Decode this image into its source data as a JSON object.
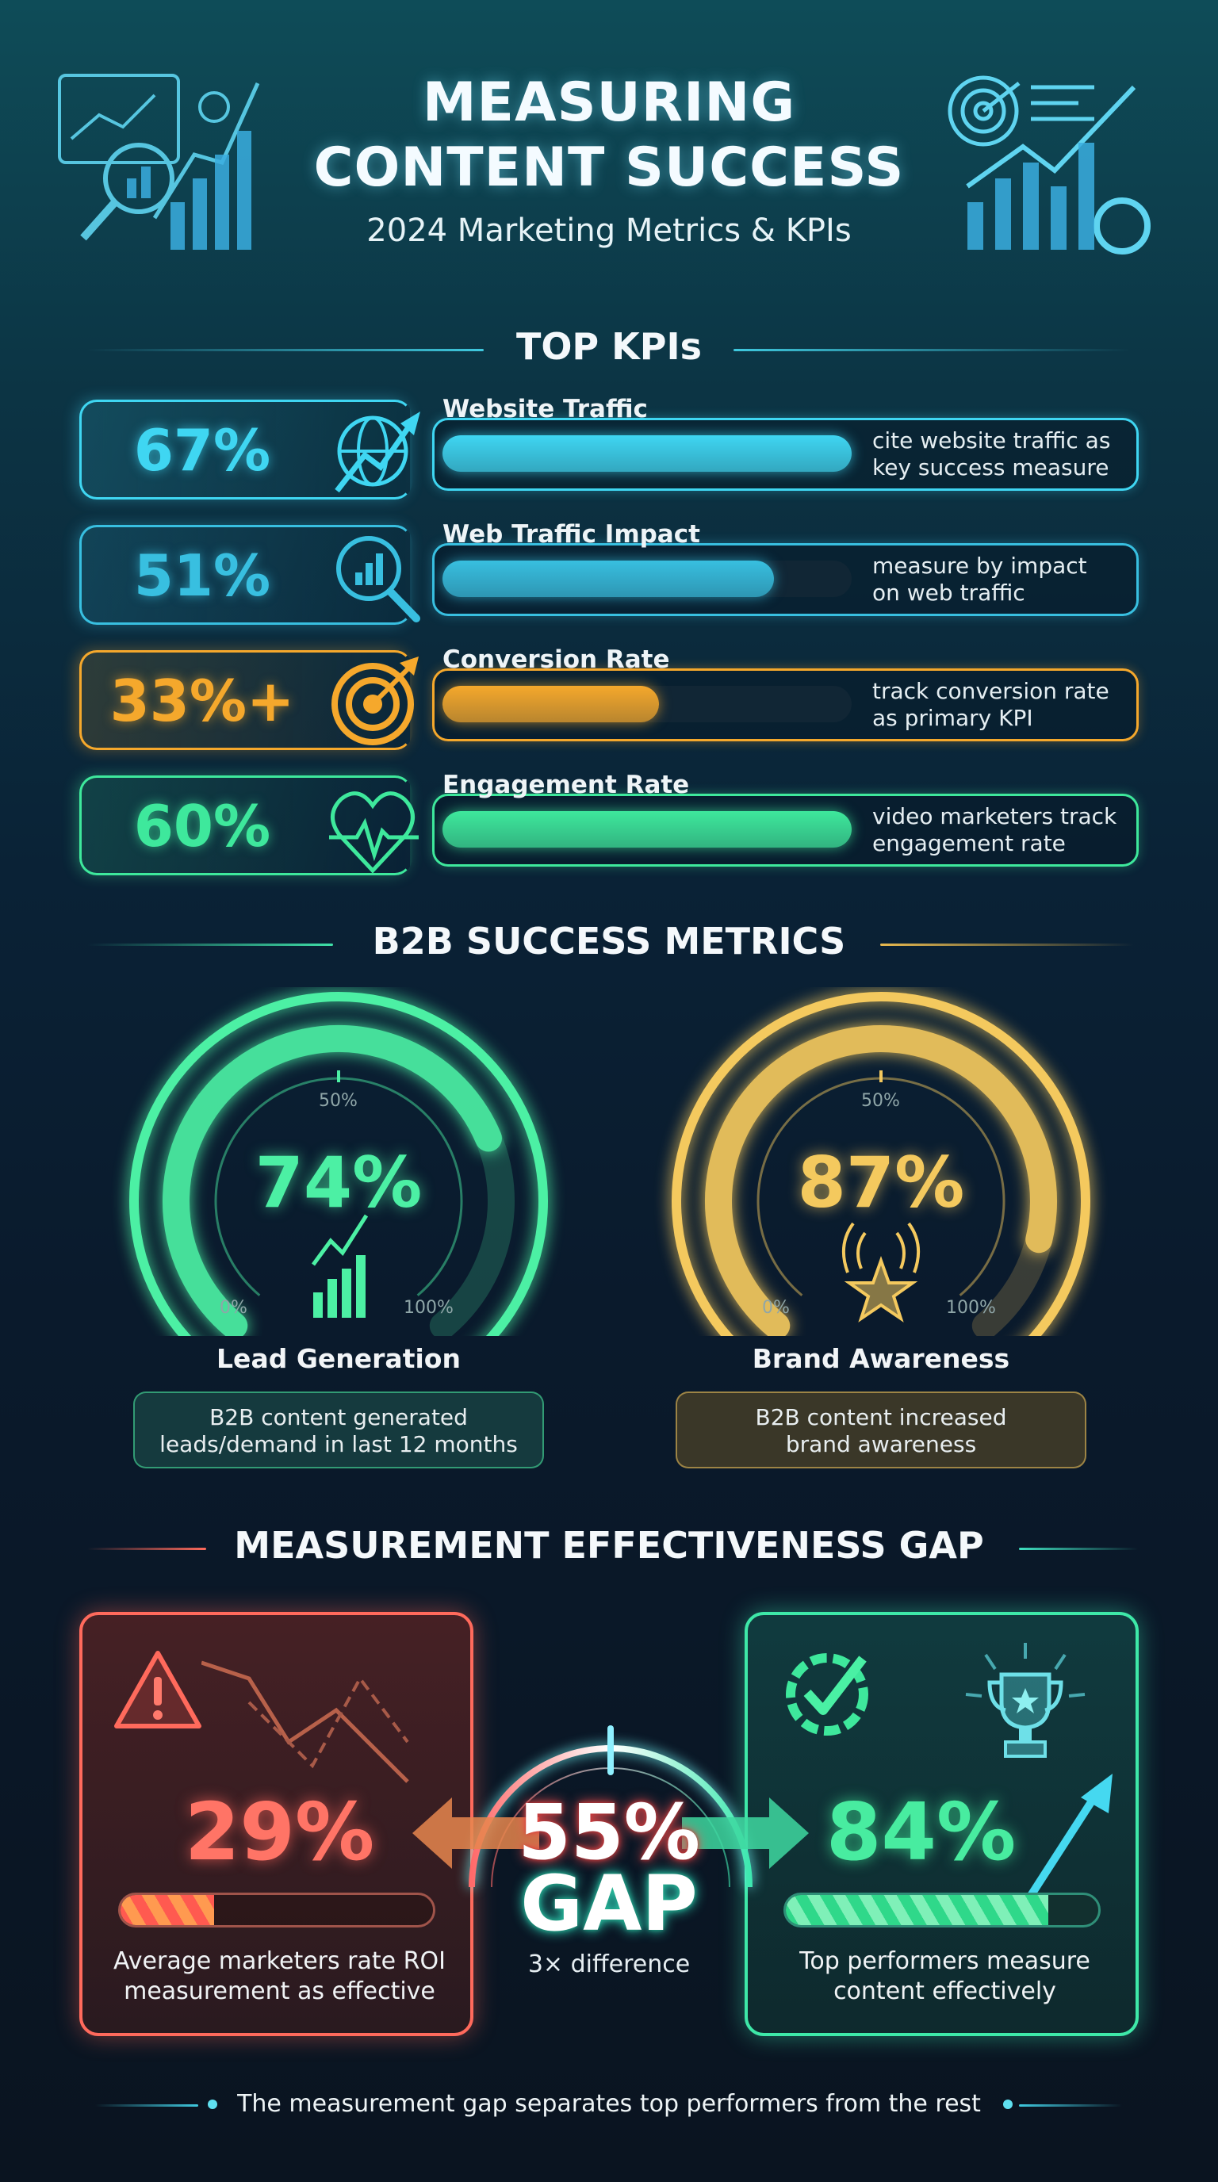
{
  "header": {
    "title_line1": "MEASURING",
    "title_line2": "CONTENT SUCCESS",
    "subtitle": "2024 Marketing Metrics & KPIs",
    "left_icon": "analytics-dashboard-icon",
    "right_icon": "target-growth-gear-icon"
  },
  "sections": {
    "kpis": "TOP KPIs",
    "b2b": "B2B SUCCESS METRICS",
    "gap": "MEASUREMENT EFFECTIVENESS GAP"
  },
  "kpis": [
    {
      "value": "67%",
      "title": "Website Traffic",
      "desc1": "cite website traffic as",
      "desc2": "key success measure",
      "color": "#3fd6f2",
      "icon": "globe-arrow-icon",
      "bar_fill_percent": 100
    },
    {
      "value": "51%",
      "title": "Web Traffic Impact",
      "desc1": "measure by impact",
      "desc2": "on web traffic",
      "color": "#38bfe0",
      "icon": "magnifier-chart-icon",
      "bar_fill_percent": 81
    },
    {
      "value": "33%+",
      "title": "Conversion Rate",
      "desc1": "track conversion rate",
      "desc2": "as primary KPI",
      "color": "#f5a82c",
      "icon": "target-arrow-icon",
      "bar_fill_percent": 53
    },
    {
      "value": "60%",
      "title": "Engagement Rate",
      "desc1": "video marketers track",
      "desc2": "engagement rate",
      "color": "#3ee89c",
      "icon": "heart-pulse-icon",
      "bar_fill_percent": 100
    }
  ],
  "gauges": [
    {
      "value": 74,
      "display": "74%",
      "label": "Lead Generation",
      "desc1": "B2B content generated",
      "desc2": "leads/demand in last 12 months",
      "color": "#4cf0a4",
      "icon": "growth-chart-icon",
      "tick_min": "0%",
      "tick_mid": "50%",
      "tick_max": "100%"
    },
    {
      "value": 87,
      "display": "87%",
      "label": "Brand Awareness",
      "desc1": "B2B content increased",
      "desc2": "brand awareness",
      "color": "#f4c95e",
      "icon": "star-broadcast-icon",
      "tick_min": "0%",
      "tick_mid": "50%",
      "tick_max": "100%"
    }
  ],
  "gap": {
    "left": {
      "value": "29%",
      "desc1": "Average marketers rate ROI",
      "desc2": "measurement as effective",
      "color": "#ff6a5c",
      "icon": "warning-icon"
    },
    "center": {
      "value": "55%",
      "label": "GAP",
      "sub": "3× difference"
    },
    "right": {
      "value": "84%",
      "desc1": "Top performers measure",
      "desc2": "content effectively",
      "color": "#40e89a",
      "icon": "trophy-icon"
    }
  },
  "footer": {
    "text": "The measurement gap separates top performers from the rest"
  }
}
